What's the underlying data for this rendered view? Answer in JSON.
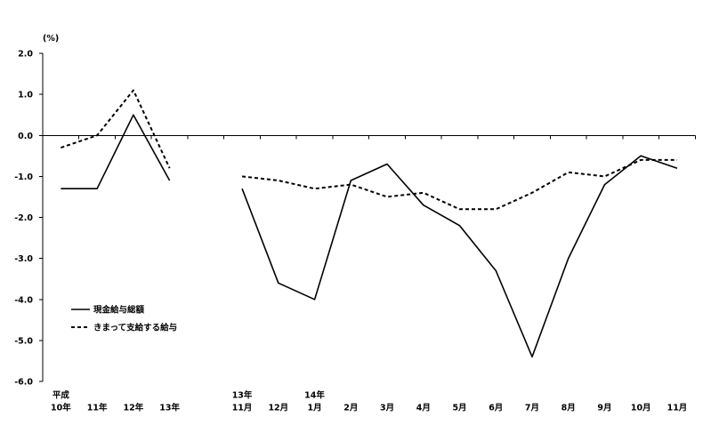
{
  "chart_data": {
    "type": "line",
    "ylabel": "(%)",
    "ylim": [
      -6.0,
      2.0
    ],
    "yticks": [
      "2.0",
      "1.0",
      "0.0",
      "-1.0",
      "-2.0",
      "-3.0",
      "-4.0",
      "-5.0",
      "-6.0"
    ],
    "grid": false,
    "legend": "bottom-left",
    "categories": [
      {
        "top": "平成",
        "bottom": "10年"
      },
      {
        "bottom": "11年"
      },
      {
        "bottom": "12年"
      },
      {
        "bottom": "13年"
      },
      {},
      {
        "top": "13年",
        "bottom": "11月"
      },
      {
        "bottom": "12月"
      },
      {
        "top": "14年",
        "bottom": "1月"
      },
      {
        "bottom": "2月"
      },
      {
        "bottom": "3月"
      },
      {
        "bottom": "4月"
      },
      {
        "bottom": "5月"
      },
      {
        "bottom": "6月"
      },
      {
        "bottom": "7月"
      },
      {
        "bottom": "8月"
      },
      {
        "bottom": "9月"
      },
      {
        "bottom": "10月"
      },
      {
        "bottom": "11月"
      }
    ],
    "series": [
      {
        "name": "現金給与総額",
        "line_style": "solid",
        "color": "#000000",
        "values": [
          -1.3,
          -1.3,
          0.5,
          -1.1,
          null,
          -1.3,
          -3.6,
          -4.0,
          -1.1,
          -0.7,
          -1.7,
          -2.2,
          -3.3,
          -5.4,
          -3.0,
          -1.2,
          -0.5,
          -0.8
        ]
      },
      {
        "name": "きまって支給する給与",
        "line_style": "dashed",
        "color": "#000000",
        "values": [
          -0.3,
          0.0,
          1.1,
          -0.8,
          null,
          -1.0,
          -1.1,
          -1.3,
          -1.2,
          -1.5,
          -1.4,
          -1.8,
          -1.8,
          -1.4,
          -0.9,
          -1.0,
          -0.6,
          -0.6
        ]
      }
    ]
  }
}
